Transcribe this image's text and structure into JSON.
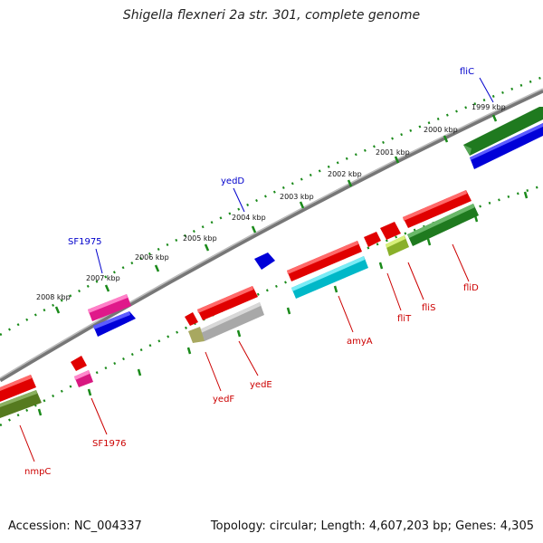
{
  "title": "Shigella flexneri 2a str. 301, complete genome",
  "footer": {
    "accession": "Accession: NC_004337",
    "summary": "Topology: circular; Length: 4,607,203 bp; Genes: 4,305"
  },
  "colors": {
    "backbone": "#7a7a7a",
    "tick": "#1a8a1a",
    "label_forward": "#0000cc",
    "label_reverse": "#cc0000"
  },
  "scale_labels": [
    "1999 kbp",
    "2000 kbp",
    "2001 kbp",
    "2002 kbp",
    "2003 kbp",
    "2004 kbp",
    "2005 kbp",
    "2006 kbp",
    "2007 kbp",
    "2008 kbp"
  ],
  "gene_labels": {
    "fliC": "fliC",
    "yedD": "yedD",
    "SF1975": "SF1975",
    "fliD": "fliD",
    "fliS": "fliS",
    "fliT": "fliT",
    "amyA": "amyA",
    "yedE": "yedE",
    "yedF": "yedF",
    "SF1976": "SF1976",
    "nmpC": "nmpC"
  }
}
